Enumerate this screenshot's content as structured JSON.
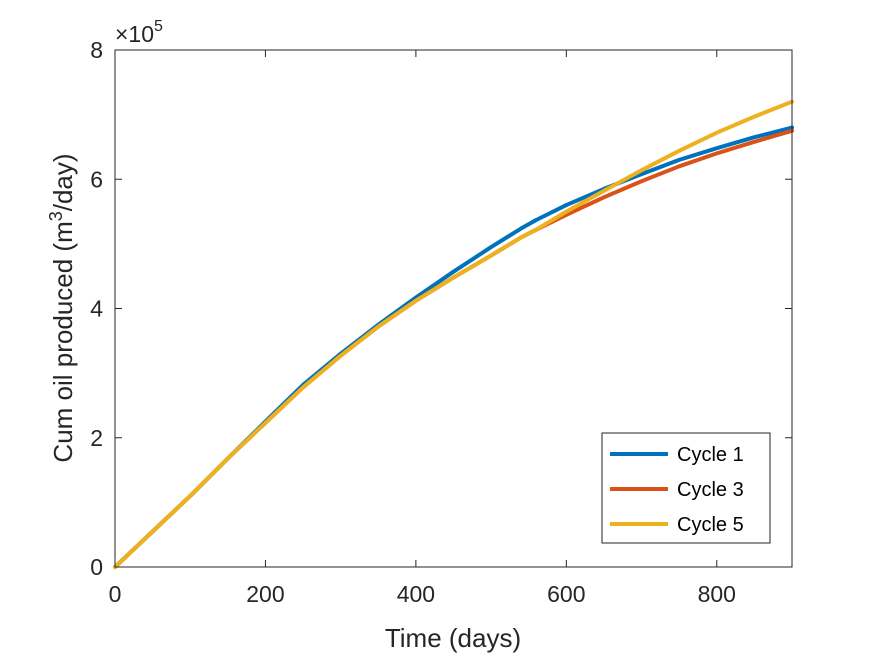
{
  "chart_data": {
    "type": "line",
    "title": "",
    "xlabel": "Time (days)",
    "ylabel_main": "Cum oil produced (m",
    "ylabel_sup": "3",
    "ylabel_tail": "/day)",
    "xlim": [
      0,
      900
    ],
    "ylim": [
      0,
      8
    ],
    "xticks": [
      0,
      200,
      400,
      600,
      800
    ],
    "yticks": [
      0,
      2,
      4,
      6,
      8
    ],
    "xtick_labels": [
      "0",
      "200",
      "400",
      "600",
      "800"
    ],
    "ytick_labels": [
      "0",
      "2",
      "4",
      "6",
      "8"
    ],
    "y_multiplier_base": "×10",
    "y_multiplier_exp": "5",
    "legend_position": "bottom-right",
    "grid": false,
    "series": [
      {
        "name": "Cycle 1",
        "color": "#0072BD",
        "x": [
          0,
          50,
          100,
          150,
          200,
          250,
          300,
          350,
          400,
          450,
          500,
          540,
          560,
          600,
          650,
          700,
          750,
          800,
          850,
          900
        ],
        "y": [
          0,
          0.55,
          1.1,
          1.68,
          2.25,
          2.82,
          3.3,
          3.75,
          4.17,
          4.57,
          4.95,
          5.24,
          5.37,
          5.6,
          5.85,
          6.08,
          6.3,
          6.48,
          6.65,
          6.8
        ]
      },
      {
        "name": "Cycle 3",
        "color": "#D95319",
        "x": [
          0,
          50,
          100,
          150,
          200,
          250,
          300,
          350,
          400,
          450,
          500,
          540,
          560,
          600,
          650,
          700,
          750,
          800,
          850,
          900
        ],
        "y": [
          0,
          0.55,
          1.1,
          1.68,
          2.23,
          2.78,
          3.27,
          3.72,
          4.12,
          4.48,
          4.82,
          5.1,
          5.22,
          5.45,
          5.72,
          5.97,
          6.2,
          6.4,
          6.58,
          6.75
        ]
      },
      {
        "name": "Cycle 5",
        "color": "#EDB120",
        "x": [
          0,
          50,
          100,
          150,
          200,
          250,
          300,
          350,
          400,
          450,
          500,
          540,
          560,
          600,
          650,
          700,
          750,
          800,
          850,
          900
        ],
        "y": [
          0,
          0.55,
          1.1,
          1.68,
          2.23,
          2.78,
          3.27,
          3.72,
          4.12,
          4.48,
          4.82,
          5.1,
          5.22,
          5.5,
          5.82,
          6.14,
          6.44,
          6.72,
          6.97,
          7.2
        ]
      }
    ]
  }
}
